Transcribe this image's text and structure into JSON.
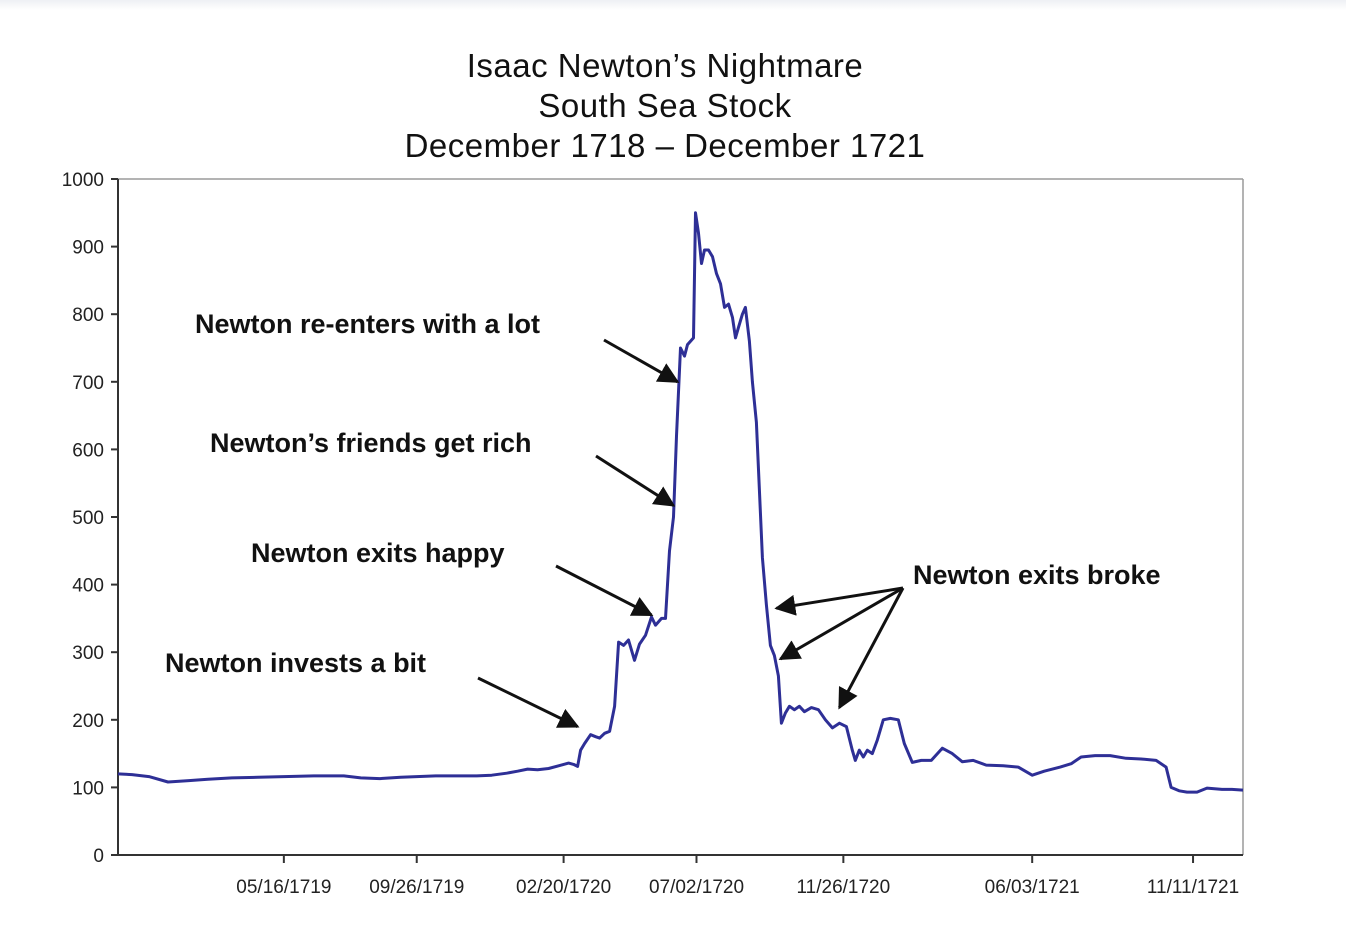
{
  "chart_data": {
    "type": "line",
    "title": [
      "Isaac Newton’s Nightmare",
      "South Sea Stock",
      "December 1718 – December 1721"
    ],
    "xlabel": "",
    "ylabel": "",
    "ylim": [
      0,
      1000
    ],
    "xlim": [
      "1718-12-01",
      "1721-12-31"
    ],
    "y_ticks": [
      0,
      100,
      200,
      300,
      400,
      500,
      600,
      700,
      800,
      900,
      1000
    ],
    "x_ticks": [
      {
        "date": "1719-05-16",
        "label": "05/16/1719"
      },
      {
        "date": "1719-09-26",
        "label": "09/26/1719"
      },
      {
        "date": "1720-02-20",
        "label": "02/20/1720"
      },
      {
        "date": "1720-07-02",
        "label": "07/02/1720"
      },
      {
        "date": "1720-11-26",
        "label": "11/26/1720"
      },
      {
        "date": "1721-06-03",
        "label": "06/03/1721"
      },
      {
        "date": "1721-11-11",
        "label": "11/11/1721"
      }
    ],
    "grid": false,
    "legend": "none",
    "line_color": "#2e2f96",
    "series": [
      {
        "name": "",
        "points": [
          [
            "1718-12-01",
            120
          ],
          [
            "1718-12-15",
            119
          ],
          [
            "1719-01-01",
            116
          ],
          [
            "1719-01-20",
            108
          ],
          [
            "1719-02-10",
            110
          ],
          [
            "1719-03-01",
            112
          ],
          [
            "1719-03-25",
            114
          ],
          [
            "1719-04-20",
            115
          ],
          [
            "1719-05-16",
            116
          ],
          [
            "1719-06-15",
            117
          ],
          [
            "1719-07-15",
            117
          ],
          [
            "1719-08-01",
            114
          ],
          [
            "1719-08-20",
            113
          ],
          [
            "1719-09-10",
            115
          ],
          [
            "1719-09-26",
            116
          ],
          [
            "1719-10-15",
            117
          ],
          [
            "1719-11-05",
            117
          ],
          [
            "1719-11-25",
            117
          ],
          [
            "1719-12-10",
            118
          ],
          [
            "1719-12-25",
            121
          ],
          [
            "1720-01-05",
            124
          ],
          [
            "1720-01-15",
            127
          ],
          [
            "1720-01-25",
            126
          ],
          [
            "1720-02-05",
            128
          ],
          [
            "1720-02-15",
            132
          ],
          [
            "1720-02-25",
            136
          ],
          [
            "1720-03-01",
            134
          ],
          [
            "1720-03-05",
            131
          ],
          [
            "1720-03-08",
            155
          ],
          [
            "1720-03-12",
            165
          ],
          [
            "1720-03-18",
            178
          ],
          [
            "1720-03-23",
            175
          ],
          [
            "1720-03-27",
            173
          ],
          [
            "1720-04-01",
            180
          ],
          [
            "1720-04-06",
            183
          ],
          [
            "1720-04-11",
            220
          ],
          [
            "1720-04-15",
            315
          ],
          [
            "1720-04-20",
            310
          ],
          [
            "1720-04-25",
            318
          ],
          [
            "1720-05-01",
            288
          ],
          [
            "1720-05-06",
            312
          ],
          [
            "1720-05-12",
            325
          ],
          [
            "1720-05-18",
            352
          ],
          [
            "1720-05-22",
            340
          ],
          [
            "1720-05-28",
            350
          ],
          [
            "1720-06-01",
            350
          ],
          [
            "1720-06-05",
            450
          ],
          [
            "1720-06-09",
            500
          ],
          [
            "1720-06-12",
            620
          ],
          [
            "1720-06-16",
            750
          ],
          [
            "1720-06-20",
            738
          ],
          [
            "1720-06-23",
            755
          ],
          [
            "1720-06-26",
            760
          ],
          [
            "1720-06-29",
            765
          ],
          [
            "1720-07-01",
            950
          ],
          [
            "1720-07-04",
            920
          ],
          [
            "1720-07-07",
            875
          ],
          [
            "1720-07-10",
            895
          ],
          [
            "1720-07-14",
            895
          ],
          [
            "1720-07-18",
            885
          ],
          [
            "1720-07-22",
            860
          ],
          [
            "1720-07-26",
            845
          ],
          [
            "1720-07-30",
            810
          ],
          [
            "1720-08-03",
            815
          ],
          [
            "1720-08-07",
            795
          ],
          [
            "1720-08-10",
            765
          ],
          [
            "1720-08-13",
            780
          ],
          [
            "1720-08-17",
            800
          ],
          [
            "1720-08-20",
            810
          ],
          [
            "1720-08-24",
            760
          ],
          [
            "1720-08-27",
            700
          ],
          [
            "1720-08-31",
            640
          ],
          [
            "1720-09-03",
            540
          ],
          [
            "1720-09-06",
            440
          ],
          [
            "1720-09-10",
            370
          ],
          [
            "1720-09-14",
            310
          ],
          [
            "1720-09-18",
            295
          ],
          [
            "1720-09-22",
            265
          ],
          [
            "1720-09-25",
            195
          ],
          [
            "1720-09-29",
            210
          ],
          [
            "1720-10-03",
            220
          ],
          [
            "1720-10-08",
            215
          ],
          [
            "1720-10-13",
            220
          ],
          [
            "1720-10-18",
            212
          ],
          [
            "1720-10-25",
            218
          ],
          [
            "1720-11-01",
            215
          ],
          [
            "1720-11-08",
            200
          ],
          [
            "1720-11-15",
            188
          ],
          [
            "1720-11-22",
            195
          ],
          [
            "1720-11-29",
            190
          ],
          [
            "1720-12-05",
            155
          ],
          [
            "1720-12-08",
            140
          ],
          [
            "1720-12-12",
            155
          ],
          [
            "1720-12-16",
            145
          ],
          [
            "1720-12-20",
            155
          ],
          [
            "1720-12-25",
            150
          ],
          [
            "1720-12-30",
            170
          ],
          [
            "1721-01-05",
            200
          ],
          [
            "1721-01-12",
            202
          ],
          [
            "1721-01-20",
            200
          ],
          [
            "1721-01-26",
            165
          ],
          [
            "1721-02-03",
            137
          ],
          [
            "1721-02-12",
            140
          ],
          [
            "1721-02-22",
            140
          ],
          [
            "1721-03-05",
            158
          ],
          [
            "1721-03-15",
            150
          ],
          [
            "1721-03-25",
            138
          ],
          [
            "1721-04-05",
            140
          ],
          [
            "1721-04-18",
            133
          ],
          [
            "1721-05-05",
            132
          ],
          [
            "1721-05-20",
            130
          ],
          [
            "1721-06-03",
            118
          ],
          [
            "1721-06-15",
            124
          ],
          [
            "1721-07-01",
            130
          ],
          [
            "1721-07-12",
            135
          ],
          [
            "1721-07-22",
            145
          ],
          [
            "1721-08-05",
            147
          ],
          [
            "1721-08-20",
            147
          ],
          [
            "1721-09-05",
            143
          ],
          [
            "1721-09-20",
            142
          ],
          [
            "1721-10-05",
            140
          ],
          [
            "1721-10-15",
            130
          ],
          [
            "1721-10-20",
            100
          ],
          [
            "1721-10-28",
            95
          ],
          [
            "1721-11-05",
            93
          ],
          [
            "1721-11-15",
            93
          ],
          [
            "1721-11-25",
            99
          ],
          [
            "1721-12-10",
            97
          ],
          [
            "1721-12-20",
            97
          ],
          [
            "1721-12-31",
            96
          ]
        ]
      }
    ],
    "annotations": [
      {
        "text": "Newton re-enters with a lot",
        "arrow_to": [
          "1720-06-13",
          700
        ]
      },
      {
        "text": "Newton’s friends get rich",
        "arrow_to": [
          "1720-06-09",
          517
        ]
      },
      {
        "text": "Newton exits happy",
        "arrow_to": [
          "1720-05-18",
          355
        ]
      },
      {
        "text": "Newton invests a bit",
        "arrow_to": [
          "1720-03-05",
          190
        ]
      },
      {
        "text": "Newton exits broke",
        "arrow_to": [
          [
            "1720-09-20",
            365
          ],
          [
            "1720-09-24",
            290
          ],
          [
            "1720-11-22",
            218
          ]
        ]
      }
    ]
  }
}
